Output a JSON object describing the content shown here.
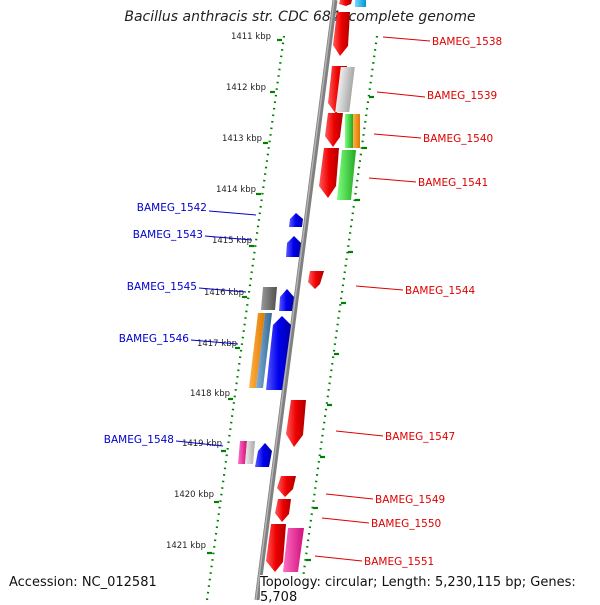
{
  "title": "Bacillus anthracis str. CDC 684, complete genome",
  "accession": "Accession: NC_012581",
  "topology": "Topology: circular; Length: 5,230,115 bp; Genes: 5,708",
  "ticks": [
    "1411 kbp",
    "1412 kbp",
    "1413 kbp",
    "1414 kbp",
    "1415 kbp",
    "1416 kbp",
    "1417 kbp",
    "1418 kbp",
    "1419 kbp",
    "1420 kbp",
    "1421 kbp"
  ],
  "forward_genes": [
    {
      "label": "BAMEG_1538",
      "color": "#ff0000"
    },
    {
      "label": "BAMEG_1539",
      "color": "#ff0000"
    },
    {
      "label": "BAMEG_1540",
      "color": "#ff0000"
    },
    {
      "label": "BAMEG_1541",
      "color": "#ff0000"
    },
    {
      "label": "BAMEG_1544",
      "color": "#ff0000"
    },
    {
      "label": "BAMEG_1547",
      "color": "#ff0000"
    },
    {
      "label": "BAMEG_1549",
      "color": "#ff0000"
    },
    {
      "label": "BAMEG_1550",
      "color": "#ff0000"
    },
    {
      "label": "BAMEG_1551",
      "color": "#ff0000"
    }
  ],
  "reverse_genes": [
    {
      "label": "BAMEG_1542",
      "color": "#0000ff"
    },
    {
      "label": "BAMEG_1543",
      "color": "#0000ff"
    },
    {
      "label": "BAMEG_1545",
      "color": "#0000ff"
    },
    {
      "label": "BAMEG_1546",
      "color": "#0000ff"
    },
    {
      "label": "BAMEG_1548",
      "color": "#0000ff"
    }
  ],
  "colors": {
    "forward_strand": "#ff0000",
    "reverse_strand": "#0000ff",
    "backbone": "#808080",
    "tick_dots": "#008000",
    "cog_gray": "#c0c0c0",
    "cog_dark_gray": "#6e6e6e",
    "cog_orange": "#ff8c00",
    "cog_green": "#32cd32",
    "cog_steel": "#4682b4",
    "cog_pink": "#ff1493",
    "cog_cyan": "#00bfff",
    "cog_mint": "#40e0a0"
  }
}
